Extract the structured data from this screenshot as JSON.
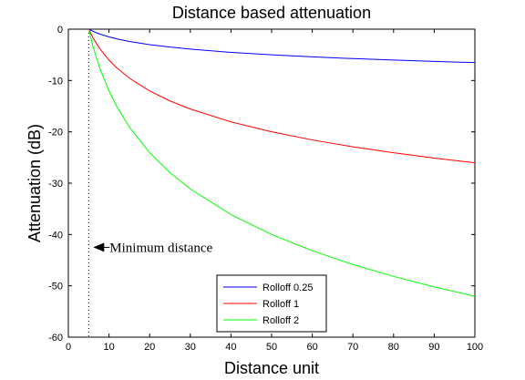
{
  "chart_data": {
    "type": "line",
    "title": "Distance based attenuation",
    "xlabel": "Distance unit",
    "ylabel": "Attenuation (dB)",
    "xlim": [
      0,
      100
    ],
    "ylim": [
      -60,
      0
    ],
    "xticks": [
      0,
      10,
      20,
      30,
      40,
      50,
      60,
      70,
      80,
      90,
      100
    ],
    "yticks": [
      0,
      -10,
      -20,
      -30,
      -40,
      -50,
      -60
    ],
    "grid": false,
    "legend_position": "bottom-center",
    "x": [
      5,
      6,
      7,
      8,
      10,
      12,
      15,
      20,
      25,
      30,
      40,
      50,
      60,
      70,
      80,
      90,
      100
    ],
    "series": [
      {
        "name": "Rolloff 0.25",
        "color": "#0000ff",
        "values": [
          0,
          -0.4,
          -0.73,
          -1.02,
          -1.51,
          -1.9,
          -2.39,
          -3.01,
          -3.49,
          -3.89,
          -4.52,
          -5.0,
          -5.4,
          -5.73,
          -6.02,
          -6.28,
          -6.51
        ]
      },
      {
        "name": "Rolloff 1",
        "color": "#ff0000",
        "values": [
          0,
          -1.58,
          -2.92,
          -4.08,
          -6.02,
          -7.6,
          -9.54,
          -12.04,
          -13.98,
          -15.56,
          -18.06,
          -20.0,
          -21.58,
          -22.92,
          -24.08,
          -25.11,
          -26.02
        ]
      },
      {
        "name": "Rolloff 2",
        "color": "#00ff00",
        "values": [
          0,
          -3.17,
          -5.84,
          -8.16,
          -12.04,
          -15.21,
          -19.08,
          -24.08,
          -27.96,
          -31.13,
          -36.12,
          -40.0,
          -43.17,
          -45.84,
          -48.16,
          -50.21,
          -52.04
        ]
      }
    ],
    "reference_line": {
      "x": 5,
      "style": "dotted"
    },
    "annotation": {
      "text": "Minimum distance",
      "x": 5,
      "y": -42.5
    }
  }
}
